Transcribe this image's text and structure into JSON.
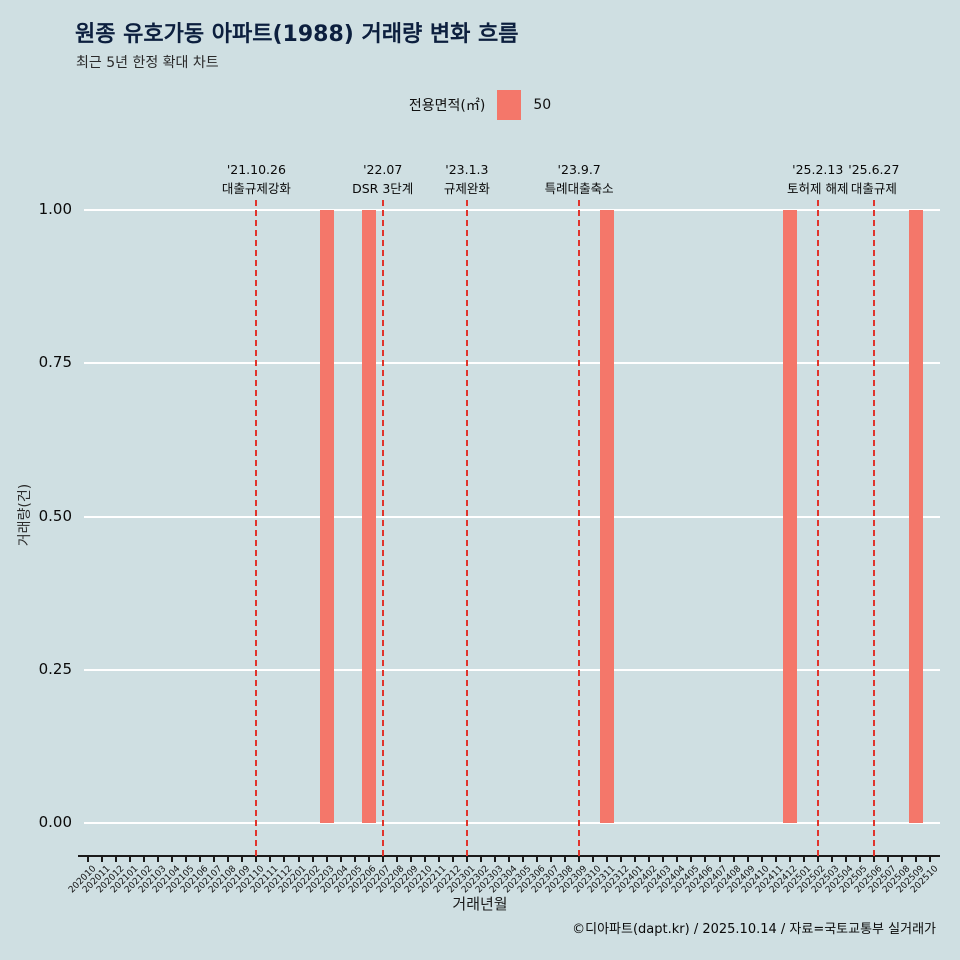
{
  "header": {
    "title": "원종 유호가동 아파트(1988) 거래량 변화 흐름",
    "subtitle": "최근 5년 한정 확대 차트"
  },
  "legend": {
    "title": "전용면적(㎡)",
    "series_label": "50",
    "swatch_color": "#f4776a"
  },
  "footer": {
    "credit": "©디아파트(dapt.kr) / 2025.10.14 / 자료=국토교통부 실거래가"
  },
  "chart_data": {
    "type": "bar",
    "title": "원종 유호가동 아파트(1988) 거래량 변화 흐름",
    "xlabel": "거래년월",
    "ylabel": "거래량(건)",
    "ylim": [
      0,
      1
    ],
    "yticks": [
      0,
      0.25,
      0.5,
      0.75,
      1
    ],
    "ytick_labels": [
      "0.00",
      "0.25",
      "0.50",
      "0.75",
      "1.00"
    ],
    "grid": true,
    "bar_color": "#f4776a",
    "event_line_color": "#e0342c",
    "background_color": "#cfdfe2",
    "categories": [
      "202010",
      "202011",
      "202012",
      "202101",
      "202102",
      "202103",
      "202104",
      "202105",
      "202106",
      "202107",
      "202108",
      "202109",
      "202110",
      "202111",
      "202112",
      "202201",
      "202202",
      "202203",
      "202204",
      "202205",
      "202206",
      "202207",
      "202208",
      "202209",
      "202210",
      "202211",
      "202212",
      "202301",
      "202302",
      "202303",
      "202304",
      "202305",
      "202306",
      "202307",
      "202308",
      "202309",
      "202310",
      "202311",
      "202312",
      "202401",
      "202402",
      "202403",
      "202404",
      "202405",
      "202406",
      "202407",
      "202408",
      "202409",
      "202410",
      "202411",
      "202412",
      "202501",
      "202502",
      "202503",
      "202504",
      "202505",
      "202506",
      "202507",
      "202508",
      "202509",
      "202510"
    ],
    "values": [
      0,
      0,
      0,
      0,
      0,
      0,
      0,
      0,
      0,
      0,
      0,
      0,
      0,
      0,
      0,
      0,
      0,
      1,
      0,
      0,
      1,
      0,
      0,
      0,
      0,
      0,
      0,
      0,
      0,
      0,
      0,
      0,
      0,
      0,
      0,
      0,
      0,
      1,
      0,
      0,
      0,
      0,
      0,
      0,
      0,
      0,
      0,
      0,
      0,
      0,
      1,
      0,
      0,
      0,
      0,
      0,
      0,
      0,
      0,
      1,
      0
    ],
    "events": [
      {
        "month": "202110",
        "date": "'21.10.26",
        "label": "대출규제강화"
      },
      {
        "month": "202207",
        "date": "'22.07",
        "label": "DSR 3단계"
      },
      {
        "month": "202301",
        "date": "'23.1.3",
        "label": "규제완화"
      },
      {
        "month": "202309",
        "date": "'23.9.7",
        "label": "특례대출축소"
      },
      {
        "month": "202502",
        "date": "'25.2.13",
        "label": "토허제 해제"
      },
      {
        "month": "202506",
        "date": "'25.6.27",
        "label": "대출규제"
      }
    ]
  }
}
